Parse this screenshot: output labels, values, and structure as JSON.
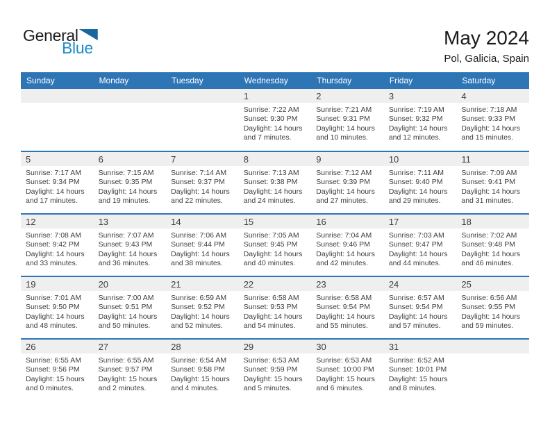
{
  "logo": {
    "line1": "General",
    "line2": "Blue"
  },
  "header": {
    "title": "May 2024",
    "subtitle": "Pol, Galicia, Spain"
  },
  "labels": {
    "sunrise": "Sunrise:",
    "sunset": "Sunset:",
    "daylight": "Daylight:"
  },
  "weekday_headers": [
    "Sunday",
    "Monday",
    "Tuesday",
    "Wednesday",
    "Thursday",
    "Friday",
    "Saturday"
  ],
  "colors": {
    "header_bg": "#2E75B6",
    "row_divider": "#2E75B6",
    "day_band": "#EFEFEF",
    "logo_blue": "#1E8BC9",
    "logo_triangle": "#16689F",
    "text": "#3D3D3D"
  },
  "weeks": [
    [
      null,
      null,
      null,
      {
        "day": 1,
        "sunrise": "7:22 AM",
        "sunset": "9:30 PM",
        "daylight": "14 hours and 7 minutes."
      },
      {
        "day": 2,
        "sunrise": "7:21 AM",
        "sunset": "9:31 PM",
        "daylight": "14 hours and 10 minutes."
      },
      {
        "day": 3,
        "sunrise": "7:19 AM",
        "sunset": "9:32 PM",
        "daylight": "14 hours and 12 minutes."
      },
      {
        "day": 4,
        "sunrise": "7:18 AM",
        "sunset": "9:33 PM",
        "daylight": "14 hours and 15 minutes."
      }
    ],
    [
      {
        "day": 5,
        "sunrise": "7:17 AM",
        "sunset": "9:34 PM",
        "daylight": "14 hours and 17 minutes."
      },
      {
        "day": 6,
        "sunrise": "7:15 AM",
        "sunset": "9:35 PM",
        "daylight": "14 hours and 19 minutes."
      },
      {
        "day": 7,
        "sunrise": "7:14 AM",
        "sunset": "9:37 PM",
        "daylight": "14 hours and 22 minutes."
      },
      {
        "day": 8,
        "sunrise": "7:13 AM",
        "sunset": "9:38 PM",
        "daylight": "14 hours and 24 minutes."
      },
      {
        "day": 9,
        "sunrise": "7:12 AM",
        "sunset": "9:39 PM",
        "daylight": "14 hours and 27 minutes."
      },
      {
        "day": 10,
        "sunrise": "7:11 AM",
        "sunset": "9:40 PM",
        "daylight": "14 hours and 29 minutes."
      },
      {
        "day": 11,
        "sunrise": "7:09 AM",
        "sunset": "9:41 PM",
        "daylight": "14 hours and 31 minutes."
      }
    ],
    [
      {
        "day": 12,
        "sunrise": "7:08 AM",
        "sunset": "9:42 PM",
        "daylight": "14 hours and 33 minutes."
      },
      {
        "day": 13,
        "sunrise": "7:07 AM",
        "sunset": "9:43 PM",
        "daylight": "14 hours and 36 minutes."
      },
      {
        "day": 14,
        "sunrise": "7:06 AM",
        "sunset": "9:44 PM",
        "daylight": "14 hours and 38 minutes."
      },
      {
        "day": 15,
        "sunrise": "7:05 AM",
        "sunset": "9:45 PM",
        "daylight": "14 hours and 40 minutes."
      },
      {
        "day": 16,
        "sunrise": "7:04 AM",
        "sunset": "9:46 PM",
        "daylight": "14 hours and 42 minutes."
      },
      {
        "day": 17,
        "sunrise": "7:03 AM",
        "sunset": "9:47 PM",
        "daylight": "14 hours and 44 minutes."
      },
      {
        "day": 18,
        "sunrise": "7:02 AM",
        "sunset": "9:48 PM",
        "daylight": "14 hours and 46 minutes."
      }
    ],
    [
      {
        "day": 19,
        "sunrise": "7:01 AM",
        "sunset": "9:50 PM",
        "daylight": "14 hours and 48 minutes."
      },
      {
        "day": 20,
        "sunrise": "7:00 AM",
        "sunset": "9:51 PM",
        "daylight": "14 hours and 50 minutes."
      },
      {
        "day": 21,
        "sunrise": "6:59 AM",
        "sunset": "9:52 PM",
        "daylight": "14 hours and 52 minutes."
      },
      {
        "day": 22,
        "sunrise": "6:58 AM",
        "sunset": "9:53 PM",
        "daylight": "14 hours and 54 minutes."
      },
      {
        "day": 23,
        "sunrise": "6:58 AM",
        "sunset": "9:54 PM",
        "daylight": "14 hours and 55 minutes."
      },
      {
        "day": 24,
        "sunrise": "6:57 AM",
        "sunset": "9:54 PM",
        "daylight": "14 hours and 57 minutes."
      },
      {
        "day": 25,
        "sunrise": "6:56 AM",
        "sunset": "9:55 PM",
        "daylight": "14 hours and 59 minutes."
      }
    ],
    [
      {
        "day": 26,
        "sunrise": "6:55 AM",
        "sunset": "9:56 PM",
        "daylight": "15 hours and 0 minutes."
      },
      {
        "day": 27,
        "sunrise": "6:55 AM",
        "sunset": "9:57 PM",
        "daylight": "15 hours and 2 minutes."
      },
      {
        "day": 28,
        "sunrise": "6:54 AM",
        "sunset": "9:58 PM",
        "daylight": "15 hours and 4 minutes."
      },
      {
        "day": 29,
        "sunrise": "6:53 AM",
        "sunset": "9:59 PM",
        "daylight": "15 hours and 5 minutes."
      },
      {
        "day": 30,
        "sunrise": "6:53 AM",
        "sunset": "10:00 PM",
        "daylight": "15 hours and 6 minutes."
      },
      {
        "day": 31,
        "sunrise": "6:52 AM",
        "sunset": "10:01 PM",
        "daylight": "15 hours and 8 minutes."
      },
      null
    ]
  ]
}
